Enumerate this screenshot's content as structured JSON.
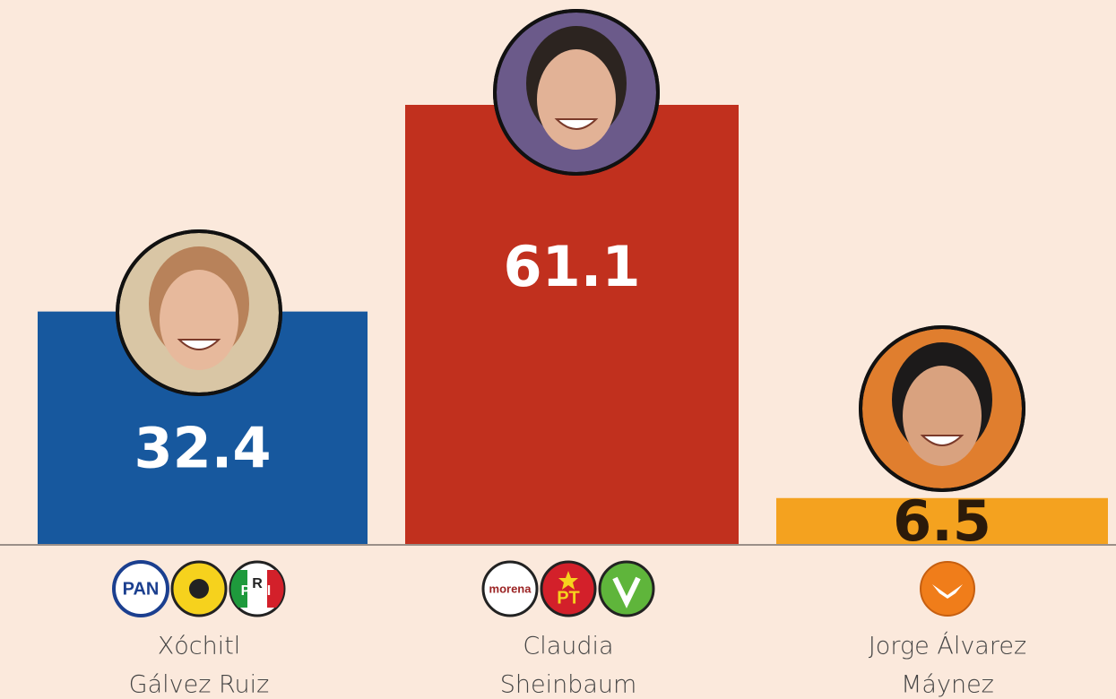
{
  "chart_data": {
    "type": "bar",
    "categories": [
      [
        "Xóchitl",
        "Gálvez Ruiz"
      ],
      [
        "Claudia",
        "Sheinbaum"
      ],
      [
        "Jorge Álvarez",
        "Máynez"
      ]
    ],
    "values": [
      32.4,
      61.1,
      6.5
    ],
    "colors": [
      "#17589e",
      "#c1301e",
      "#f4a21f"
    ],
    "value_label_colors": [
      "#ffffff",
      "#ffffff",
      "#2b1a0a"
    ]
  },
  "logos": {
    "pan": "PAN",
    "pri": [
      "P",
      "R",
      "I"
    ],
    "morena": "morena",
    "pt": "PT"
  }
}
